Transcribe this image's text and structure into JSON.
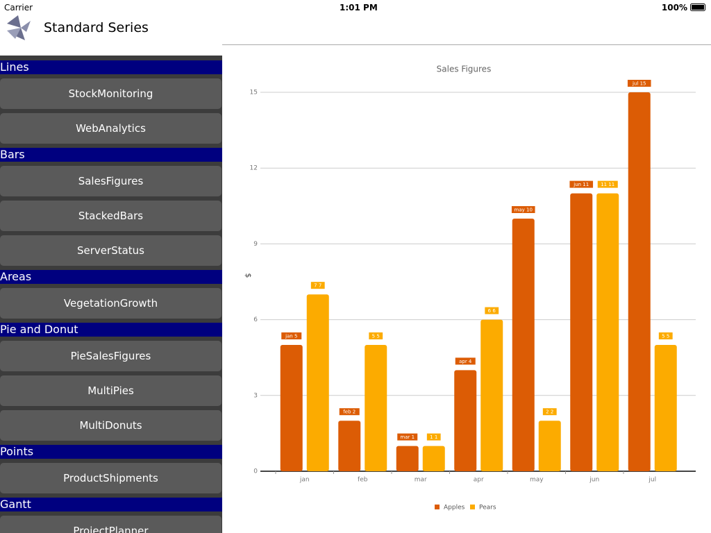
{
  "status_bar": {
    "carrier": "Carrier",
    "time": "1:01 PM",
    "battery": "100%"
  },
  "header": {
    "title": "Standard Series"
  },
  "sidebar": [
    {
      "section": "Lines",
      "items": [
        "StockMonitoring",
        "WebAnalytics"
      ]
    },
    {
      "section": "Bars",
      "items": [
        "SalesFigures",
        "StackedBars",
        "ServerStatus"
      ]
    },
    {
      "section": "Areas",
      "items": [
        "VegetationGrowth"
      ]
    },
    {
      "section": "Pie and Donut",
      "items": [
        "PieSalesFigures",
        "MultiPies",
        "MultiDonuts"
      ]
    },
    {
      "section": "Points",
      "items": [
        "ProductShipments"
      ]
    },
    {
      "section": "Gantt",
      "items": [
        "ProjectPlanner"
      ]
    }
  ],
  "chart_data": {
    "type": "bar",
    "title": "Sales Figures",
    "y_label": "$",
    "categories": [
      "jan",
      "feb",
      "mar",
      "apr",
      "may",
      "jun",
      "jul"
    ],
    "series": [
      {
        "name": "Apples",
        "color": "#dc5c05",
        "values": [
          5,
          2,
          1,
          4,
          10,
          11,
          15
        ],
        "value_labels": [
          "jan 5",
          "feb 2",
          "mar 1",
          "apr 4",
          "may 10",
          "jun 11",
          "jul 15"
        ]
      },
      {
        "name": "Pears",
        "color": "#fcab00",
        "values": [
          7,
          5,
          1,
          6,
          2,
          11,
          5
        ],
        "value_labels": [
          "7 7",
          "5 5",
          "1 1",
          "6 6",
          "2 2",
          "11 11",
          "5 5"
        ]
      }
    ],
    "ylim": [
      0,
      15
    ],
    "yticks": [
      0,
      3,
      6,
      9,
      12,
      15
    ],
    "grid": true,
    "legend": "bottom"
  }
}
